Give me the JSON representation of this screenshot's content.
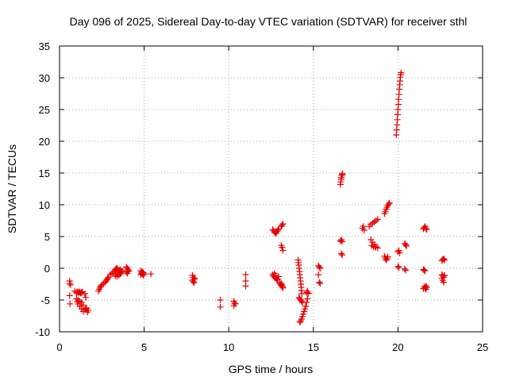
{
  "chart_data": {
    "type": "scatter",
    "title": "Day 096 of 2025, Sidereal Day-to-day VTEC variation (SDTVAR) for receiver sthl",
    "xlabel": "GPS time / hours",
    "ylabel": "SDTVAR / TECUs",
    "xlim": [
      0,
      25
    ],
    "ylim": [
      -10,
      35
    ],
    "xticks": [
      0,
      5,
      10,
      15,
      20,
      25
    ],
    "yticks": [
      -10,
      -5,
      0,
      5,
      10,
      15,
      20,
      25,
      30,
      35
    ],
    "grid": true,
    "marker": "plus",
    "color": "#e60000",
    "series": [
      {
        "name": "SDTVAR",
        "x": [
          0.6,
          0.6,
          0.65,
          0.6,
          0.62,
          0.9,
          1.0,
          1.05,
          1.1,
          1.15,
          1.2,
          1.25,
          1.3,
          1.35,
          1.05,
          1.1,
          1.2,
          1.3,
          1.4,
          1.5,
          1.6,
          1.7,
          1.5,
          1.55,
          1.0,
          1.1,
          1.2,
          1.3,
          1.4,
          1.55,
          1.65,
          2.3,
          2.35,
          2.4,
          2.45,
          2.5,
          2.6,
          2.7,
          2.75,
          2.8,
          2.85,
          2.9,
          3.0,
          3.1,
          3.2,
          3.25,
          3.3,
          3.35,
          3.4,
          3.45,
          3.5,
          3.55,
          3.6,
          3.65,
          3.3,
          3.4,
          3.5,
          3.6,
          3.7,
          3.3,
          3.4,
          3.5,
          3.6,
          3.95,
          4.0,
          4.05,
          4.1,
          3.95,
          4.0,
          4.05,
          4.8,
          4.85,
          4.9,
          4.95,
          4.8,
          4.85,
          4.9,
          4.95,
          5.0,
          5.4,
          7.85,
          7.9,
          7.95,
          7.85,
          7.9,
          7.95,
          8.0,
          9.5,
          9.5,
          10.3,
          10.35,
          10.4,
          10.3,
          11.0,
          11.0,
          11.0,
          12.6,
          12.65,
          12.7,
          12.75,
          12.8,
          12.85,
          12.9,
          12.95,
          12.6,
          12.65,
          12.7,
          12.75,
          12.8,
          12.85,
          12.9,
          12.95,
          12.7,
          12.75,
          12.8,
          13.1,
          13.15,
          13.2,
          13.1,
          13.15,
          13.2,
          13.0,
          13.05,
          13.1,
          13.15,
          13.2,
          13.1,
          13.15,
          13.2,
          14.1,
          14.12,
          14.14,
          14.16,
          14.18,
          14.2,
          14.22,
          14.24,
          14.26,
          14.28,
          14.3,
          14.32,
          14.15,
          14.2,
          14.25,
          14.3,
          14.35,
          14.2,
          14.25,
          14.3,
          14.35,
          14.4,
          14.45,
          14.5,
          14.55,
          14.6,
          14.65,
          14.7,
          14.6,
          14.65,
          14.7,
          15.3,
          15.35,
          15.4,
          15.3,
          15.35,
          15.4,
          16.6,
          16.62,
          16.64,
          16.66,
          16.68,
          16.7,
          16.72,
          16.6,
          16.65,
          16.7,
          16.65,
          16.7,
          17.9,
          17.95,
          18.0,
          18.3,
          18.4,
          18.5,
          18.6,
          18.7,
          18.8,
          18.4,
          18.5,
          18.6,
          18.7,
          18.8,
          18.45,
          18.55,
          18.65,
          19.2,
          19.25,
          19.3,
          19.35,
          19.4,
          19.45,
          19.5,
          19.2,
          19.25,
          19.3,
          19.35,
          19.4,
          19.9,
          19.92,
          19.94,
          19.96,
          19.98,
          20.0,
          20.02,
          20.04,
          20.06,
          20.08,
          20.1,
          20.12,
          20.14,
          20.16,
          20.18,
          20.0,
          20.05,
          20.1,
          20.0,
          20.05,
          20.4,
          20.45,
          20.5,
          20.4,
          20.45,
          21.5,
          21.55,
          21.6,
          21.65,
          21.7,
          21.5,
          21.55,
          21.6,
          21.65,
          21.7,
          21.5,
          21.55,
          21.6,
          21.65,
          22.6,
          22.65,
          22.7,
          22.75,
          22.6,
          22.65,
          22.7,
          22.75,
          22.6,
          22.65,
          22.7
        ],
        "y": [
          -2,
          -2.4,
          -2.6,
          -4.3,
          -5.6,
          -3.6,
          -3.8,
          -3.7,
          -3.9,
          -3.7,
          -3.8,
          -3.9,
          -3.8,
          -3.7,
          -5.3,
          -5.6,
          -6.0,
          -6.4,
          -6.8,
          -6.5,
          -6.3,
          -6.6,
          -4.0,
          -4.6,
          -4.8,
          -5.0,
          -5.2,
          -5.4,
          -5.8,
          -6.4,
          -6.9,
          -3.6,
          -3.3,
          -3.0,
          -2.8,
          -2.6,
          -2.4,
          -2.2,
          -2.0,
          -1.8,
          -1.6,
          -1.4,
          -1.0,
          -0.8,
          -0.6,
          -0.4,
          -0.2,
          -0.1,
          0.0,
          -0.2,
          -0.4,
          -0.3,
          -0.2,
          -0.5,
          -0.8,
          -0.9,
          -1.0,
          -0.7,
          -0.4,
          -1.2,
          -1.3,
          -1.1,
          -0.9,
          0.2,
          0.0,
          -0.2,
          -0.4,
          -0.6,
          -0.8,
          -0.5,
          -0.4,
          -0.6,
          -0.9,
          -1.1,
          -1.0,
          -0.8,
          -0.6,
          -0.7,
          -0.9,
          -0.9,
          -1.1,
          -1.4,
          -1.7,
          -1.9,
          -2.1,
          -2.3,
          -1.6,
          -5.0,
          -6.1,
          -5.2,
          -5.5,
          -5.6,
          -5.9,
          -1.0,
          -2.0,
          -2.8,
          6.1,
          5.9,
          5.7,
          5.6,
          5.5,
          5.8,
          6.0,
          6.2,
          -1.0,
          -1.2,
          -1.4,
          -1.5,
          -1.6,
          -1.8,
          -1.7,
          -1.3,
          -0.8,
          -1.1,
          -1.6,
          6.6,
          6.8,
          7.0,
          3.6,
          3.3,
          2.8,
          -2.3,
          -2.5,
          -2.7,
          -2.9,
          -3.1,
          -2.4,
          -2.6,
          -2.9,
          1.3,
          0.9,
          0.5,
          0.0,
          -0.5,
          -1.0,
          -1.5,
          -2.0,
          -2.5,
          -3.0,
          -3.5,
          -4.0,
          -4.6,
          -4.8,
          -5.0,
          -5.2,
          -5.4,
          -8.5,
          -8.3,
          -8.0,
          -7.6,
          -7.2,
          -6.8,
          -6.4,
          -6.0,
          -5.4,
          -4.8,
          -4.0,
          -3.8,
          -3.6,
          -3.9,
          0.4,
          0.2,
          0.0,
          -1.0,
          -2.2,
          -2.4,
          13.2,
          13.6,
          14.0,
          14.3,
          14.6,
          14.8,
          14.9,
          4.3,
          4.5,
          4.2,
          2.3,
          2.1,
          6.3,
          6.6,
          6.0,
          6.6,
          6.9,
          7.1,
          7.3,
          7.5,
          7.7,
          4.5,
          4.1,
          3.7,
          3.4,
          3.2,
          3.6,
          3.4,
          3.3,
          8.6,
          8.9,
          9.3,
          9.6,
          9.9,
          10.1,
          10.3,
          1.9,
          1.6,
          1.3,
          1.5,
          1.8,
          21.0,
          21.8,
          22.6,
          23.4,
          24.2,
          25.0,
          25.8,
          26.6,
          27.4,
          28.2,
          28.9,
          29.5,
          30.1,
          30.5,
          30.8,
          2.6,
          2.8,
          2.4,
          0.3,
          0.1,
          3.9,
          3.7,
          3.5,
          -0.1,
          -0.3,
          6.2,
          6.4,
          6.6,
          6.3,
          6.1,
          -0.2,
          -0.3,
          -0.4,
          -2.8,
          -3.0,
          -3.2,
          -2.9,
          -3.1,
          -3.3,
          1.2,
          1.4,
          1.5,
          1.3,
          -1.0,
          -1.2,
          -1.4,
          -1.1,
          -1.6,
          -1.9,
          -2.2
        ]
      }
    ]
  }
}
